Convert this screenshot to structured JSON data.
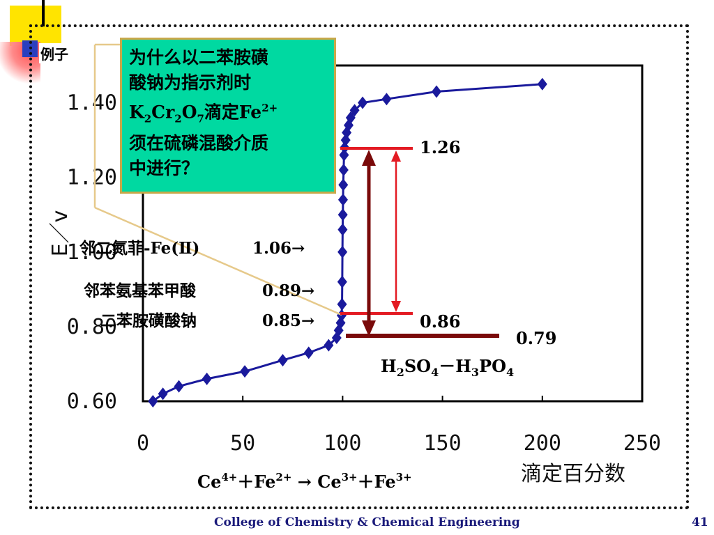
{
  "slide": {
    "label": "例子",
    "footer": "College of Chemistry & Chemical Engineering",
    "page_number": "41"
  },
  "callout": {
    "line1": "为什么以二苯胺磺",
    "line2": "酸钠为指示剂时",
    "line3_a": "K",
    "line3_sub1": "2",
    "line3_b": "Cr",
    "line3_sub2": "2",
    "line3_c": "O",
    "line3_sub3": "7",
    "line3_d": "滴定Fe",
    "line3_sup": "2+",
    "line4": "须在硫磷混酸介质",
    "line5": "中进行？"
  },
  "indicators": [
    {
      "name": "邻二氮菲-Fe(Ⅱ)",
      "value": "1.06→"
    },
    {
      "name": "邻苯氨基苯甲酸",
      "value": "0.89→"
    },
    {
      "name": "二苯胺磺酸钠",
      "value": "0.85→"
    }
  ],
  "annotations": {
    "level_high": "1.26",
    "level_low": "0.86",
    "level_bottom": "0.79",
    "medium": {
      "a": "H",
      "s1": "2",
      "b": "SO",
      "s2": "4",
      "c": "－H",
      "s3": "3",
      "d": "PO",
      "s4": "4"
    },
    "reaction": {
      "ce": "Ce",
      "ce_sup": "4+",
      "plus1": "＋Fe",
      "fe_sup": "2+",
      "arrow": " → ",
      "ce2": "Ce",
      "ce2_sup": "3+",
      "plus2": "＋Fe",
      "fe2_sup": "3+"
    }
  },
  "colors": {
    "series": "#1a1a9c",
    "red": "#e31b23",
    "dark_red": "#7a0a0a",
    "callout_bg": "#00d9a1"
  },
  "chart_data": {
    "type": "line",
    "title": "",
    "xlabel": "滴定百分数",
    "ylabel": "E／v",
    "xlim": [
      0,
      250
    ],
    "ylim": [
      0.6,
      1.5
    ],
    "x_ticks": [
      "0",
      "50",
      "100",
      "150",
      "200",
      "250"
    ],
    "y_ticks": [
      "0.60",
      "0.80",
      "1.00",
      "1.20",
      "1.40"
    ],
    "grid": false,
    "series": [
      {
        "x": [
          5,
          10,
          18,
          32,
          51,
          70,
          83,
          93,
          97,
          98,
          99,
          99.5,
          99.7,
          99.8,
          99.9,
          100,
          100.1,
          100.2,
          100.3,
          100.5,
          100.7,
          101,
          101.5,
          102,
          103,
          104,
          106,
          110,
          122,
          147,
          200
        ],
        "y": [
          0.6,
          0.62,
          0.64,
          0.66,
          0.68,
          0.71,
          0.73,
          0.75,
          0.77,
          0.79,
          0.81,
          0.83,
          0.86,
          0.92,
          1.0,
          1.06,
          1.1,
          1.14,
          1.18,
          1.22,
          1.26,
          1.28,
          1.3,
          1.32,
          1.34,
          1.36,
          1.38,
          1.4,
          1.41,
          1.43,
          1.45
        ]
      }
    ]
  }
}
